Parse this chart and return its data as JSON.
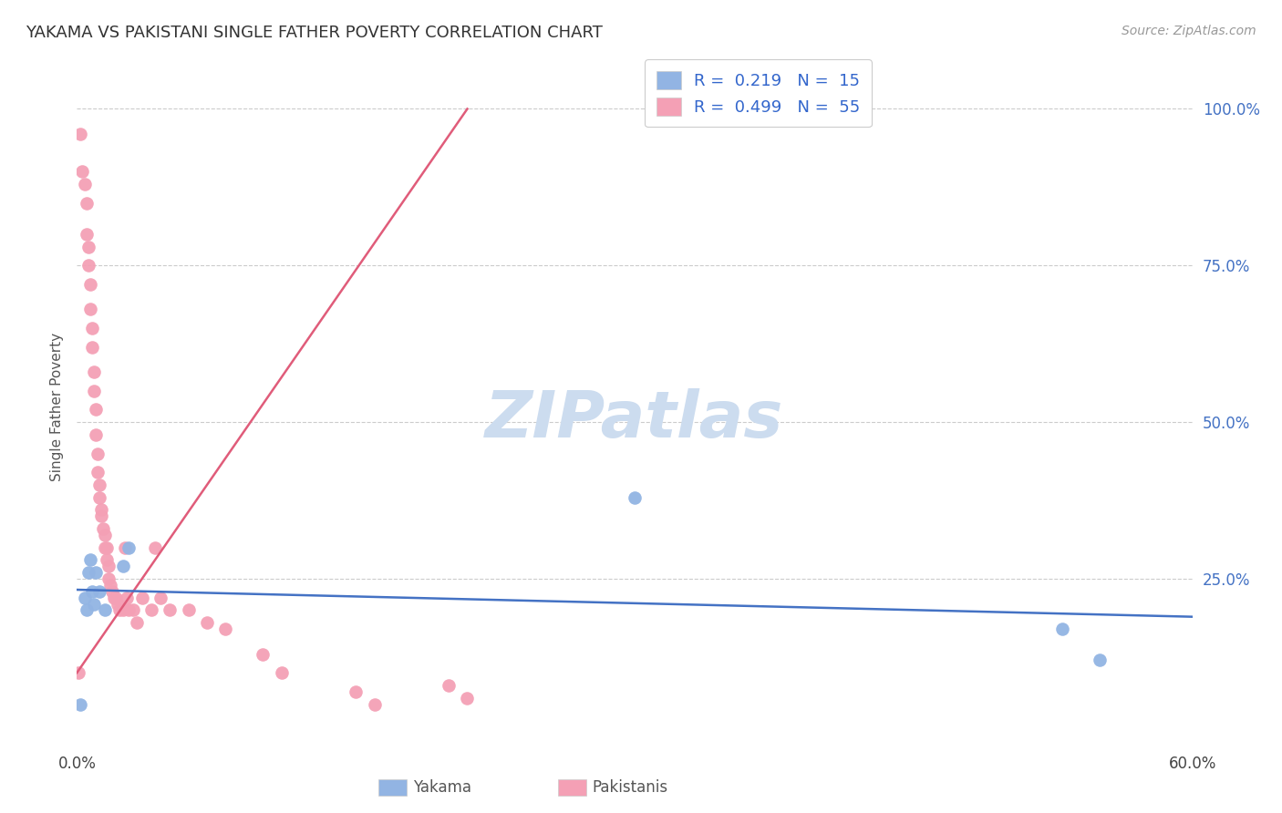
{
  "title": "YAKAMA VS PAKISTANI SINGLE FATHER POVERTY CORRELATION CHART",
  "source_text": "Source: ZipAtlas.com",
  "ylabel": "Single Father Poverty",
  "xlim": [
    0.0,
    0.6
  ],
  "ylim": [
    -0.02,
    1.07
  ],
  "yakama_color": "#92b4e3",
  "pakistani_color": "#f4a0b5",
  "trendline_yakama_color": "#4472c4",
  "trendline_pakistani_color": "#e05c7a",
  "legend_text_color": "#3366cc",
  "R_yakama": 0.219,
  "N_yakama": 15,
  "R_pakistani": 0.499,
  "N_pakistani": 55,
  "watermark": "ZIPatlas",
  "watermark_color": "#ccdcef",
  "yakama_x": [
    0.002,
    0.004,
    0.005,
    0.006,
    0.007,
    0.008,
    0.009,
    0.01,
    0.012,
    0.015,
    0.025,
    0.028,
    0.3,
    0.53,
    0.55
  ],
  "yakama_y": [
    0.05,
    0.22,
    0.2,
    0.26,
    0.28,
    0.23,
    0.21,
    0.26,
    0.23,
    0.2,
    0.27,
    0.3,
    0.38,
    0.17,
    0.12
  ],
  "pakistani_x": [
    0.001,
    0.002,
    0.003,
    0.004,
    0.005,
    0.005,
    0.006,
    0.006,
    0.007,
    0.007,
    0.008,
    0.008,
    0.009,
    0.009,
    0.01,
    0.01,
    0.011,
    0.011,
    0.012,
    0.012,
    0.013,
    0.013,
    0.014,
    0.015,
    0.015,
    0.016,
    0.016,
    0.017,
    0.017,
    0.018,
    0.019,
    0.02,
    0.021,
    0.022,
    0.023,
    0.025,
    0.026,
    0.027,
    0.028,
    0.03,
    0.032,
    0.035,
    0.04,
    0.042,
    0.045,
    0.05,
    0.06,
    0.07,
    0.08,
    0.1,
    0.11,
    0.15,
    0.16,
    0.2,
    0.21
  ],
  "pakistani_y": [
    0.1,
    0.96,
    0.9,
    0.88,
    0.85,
    0.8,
    0.78,
    0.75,
    0.72,
    0.68,
    0.65,
    0.62,
    0.58,
    0.55,
    0.52,
    0.48,
    0.45,
    0.42,
    0.4,
    0.38,
    0.36,
    0.35,
    0.33,
    0.32,
    0.3,
    0.3,
    0.28,
    0.27,
    0.25,
    0.24,
    0.23,
    0.22,
    0.22,
    0.21,
    0.2,
    0.2,
    0.3,
    0.22,
    0.2,
    0.2,
    0.18,
    0.22,
    0.2,
    0.3,
    0.22,
    0.2,
    0.2,
    0.18,
    0.17,
    0.13,
    0.1,
    0.07,
    0.05,
    0.08,
    0.06
  ],
  "pak_trendline_x": [
    0.0,
    0.21
  ],
  "pak_trendline_y": [
    0.1,
    1.0
  ]
}
